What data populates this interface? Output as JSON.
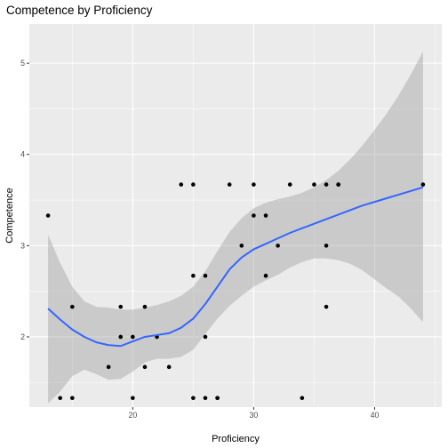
{
  "chart_data": {
    "type": "scatter",
    "title": "Competence by Proficiency",
    "xlabel": "Proficiency",
    "ylabel": "Competence",
    "xlim": [
      11.45,
      45.55
    ],
    "ylim": [
      1.23,
      5.43
    ],
    "x_ticks": [
      20,
      30,
      40
    ],
    "y_ticks": [
      2,
      3,
      4,
      5
    ],
    "grid": true,
    "colors": {
      "panel": "#ebebeb",
      "grid_major": "#ffffff",
      "points": "#000000",
      "smooth_line": "#3366ff",
      "ribbon": "#999999"
    },
    "points": [
      {
        "x": 13,
        "y": 3.33
      },
      {
        "x": 14,
        "y": 1.33
      },
      {
        "x": 15,
        "y": 1.33
      },
      {
        "x": 15,
        "y": 2.33
      },
      {
        "x": 18,
        "y": 1.67
      },
      {
        "x": 19,
        "y": 2.0
      },
      {
        "x": 19,
        "y": 2.33
      },
      {
        "x": 20,
        "y": 2.0
      },
      {
        "x": 20,
        "y": 1.33
      },
      {
        "x": 21,
        "y": 2.33
      },
      {
        "x": 21,
        "y": 1.67
      },
      {
        "x": 22,
        "y": 2.0
      },
      {
        "x": 23,
        "y": 1.67
      },
      {
        "x": 24,
        "y": 3.67
      },
      {
        "x": 25,
        "y": 3.67
      },
      {
        "x": 25,
        "y": 2.67
      },
      {
        "x": 25,
        "y": 1.33
      },
      {
        "x": 26,
        "y": 2.67
      },
      {
        "x": 26,
        "y": 2.0
      },
      {
        "x": 26,
        "y": 1.33
      },
      {
        "x": 27,
        "y": 1.33
      },
      {
        "x": 27,
        "y": 1.33
      },
      {
        "x": 28,
        "y": 3.67
      },
      {
        "x": 29,
        "y": 3.0
      },
      {
        "x": 30,
        "y": 3.67
      },
      {
        "x": 30,
        "y": 3.33
      },
      {
        "x": 31,
        "y": 3.33
      },
      {
        "x": 31,
        "y": 2.67
      },
      {
        "x": 32,
        "y": 3.0
      },
      {
        "x": 33,
        "y": 3.67
      },
      {
        "x": 34,
        "y": 1.33
      },
      {
        "x": 35,
        "y": 3.67
      },
      {
        "x": 36,
        "y": 3.67
      },
      {
        "x": 36,
        "y": 3.0
      },
      {
        "x": 36,
        "y": 2.33
      },
      {
        "x": 37,
        "y": 3.67
      },
      {
        "x": 37,
        "y": 3.67
      },
      {
        "x": 44,
        "y": 3.67
      }
    ],
    "smooth": {
      "x": [
        13,
        14,
        15,
        16,
        17,
        18,
        19,
        20,
        21,
        22,
        23,
        24,
        25,
        26,
        27,
        28,
        29,
        30,
        31,
        32,
        33,
        34,
        35,
        36,
        37,
        38,
        39,
        40,
        41,
        42,
        43,
        44
      ],
      "y": [
        2.31,
        2.19,
        2.08,
        2.0,
        1.94,
        1.91,
        1.9,
        1.95,
        2.0,
        2.02,
        2.04,
        2.1,
        2.2,
        2.36,
        2.55,
        2.74,
        2.87,
        2.96,
        3.02,
        3.08,
        3.14,
        3.19,
        3.24,
        3.29,
        3.34,
        3.39,
        3.44,
        3.48,
        3.52,
        3.56,
        3.6,
        3.64
      ],
      "upper": [
        3.12,
        2.81,
        2.55,
        2.39,
        2.33,
        2.32,
        2.3,
        2.3,
        2.32,
        2.35,
        2.39,
        2.45,
        2.55,
        2.72,
        2.94,
        3.15,
        3.3,
        3.41,
        3.47,
        3.51,
        3.54,
        3.58,
        3.64,
        3.72,
        3.82,
        3.95,
        4.1,
        4.27,
        4.45,
        4.65,
        4.88,
        5.13
      ],
      "lower": [
        1.27,
        1.4,
        1.57,
        1.64,
        1.59,
        1.53,
        1.54,
        1.62,
        1.72,
        1.76,
        1.76,
        1.78,
        1.86,
        2.03,
        2.2,
        2.34,
        2.45,
        2.55,
        2.62,
        2.68,
        2.76,
        2.82,
        2.86,
        2.86,
        2.84,
        2.8,
        2.73,
        2.63,
        2.53,
        2.44,
        2.31,
        2.16
      ]
    }
  }
}
